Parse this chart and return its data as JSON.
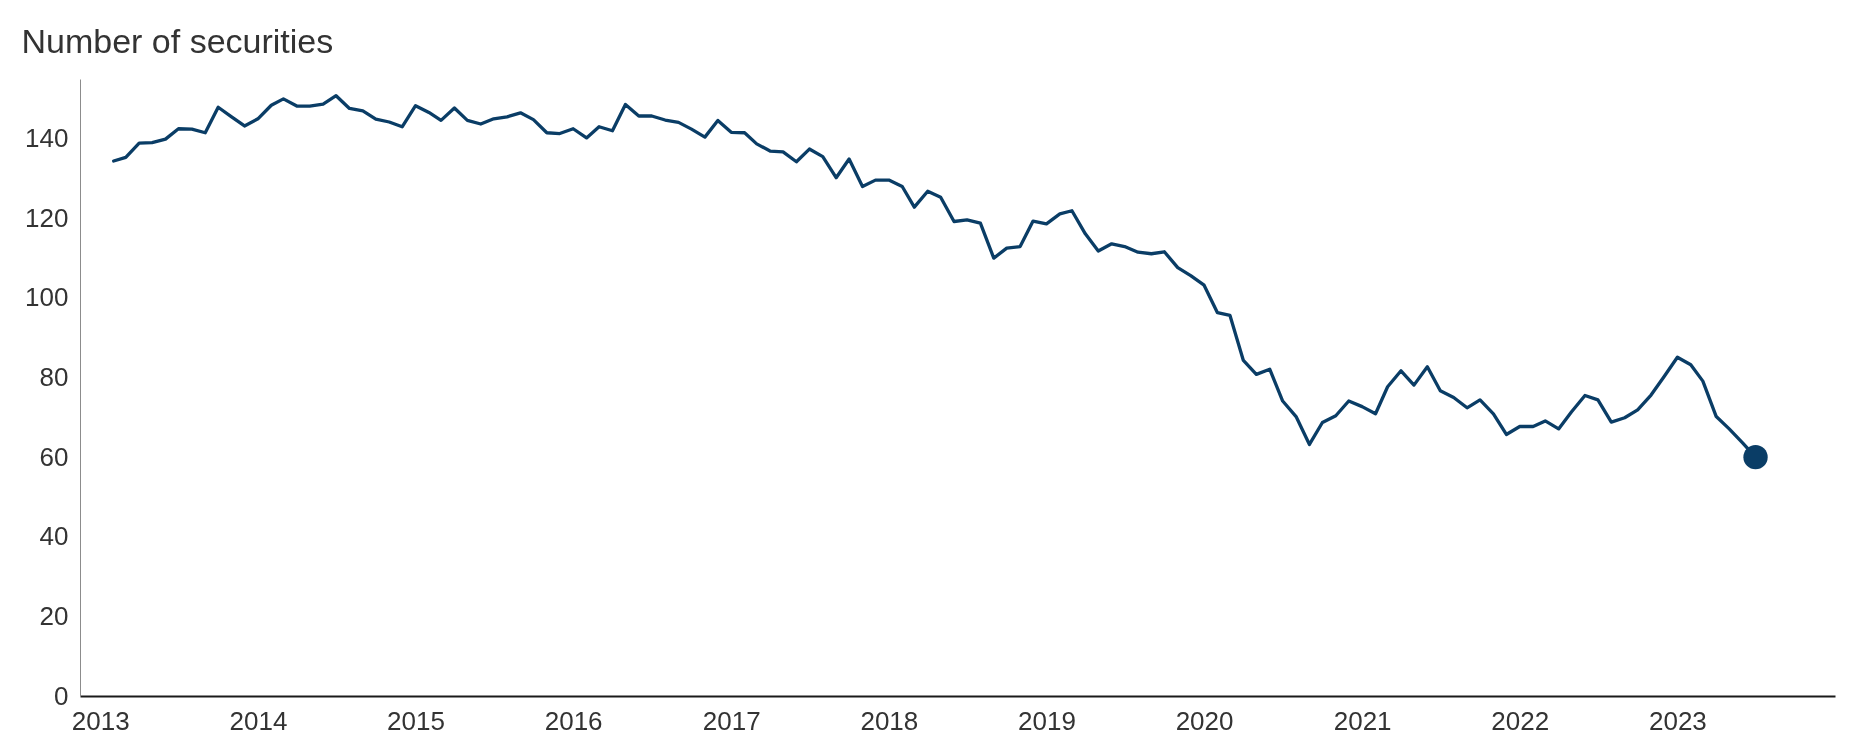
{
  "chart_data": {
    "type": "line",
    "ylabel": "Number of securities",
    "x": [
      "2013-02",
      "2013-03",
      "2013-04",
      "2013-05",
      "2013-06",
      "2013-07",
      "2013-08",
      "2013-09",
      "2013-10",
      "2013-11",
      "2013-12",
      "2014-01",
      "2014-02",
      "2014-03",
      "2014-04",
      "2014-05",
      "2014-06",
      "2014-07",
      "2014-08",
      "2014-09",
      "2014-10",
      "2014-11",
      "2014-12",
      "2015-01",
      "2015-02",
      "2015-03",
      "2015-04",
      "2015-05",
      "2015-06",
      "2015-07",
      "2015-08",
      "2015-09",
      "2015-10",
      "2015-11",
      "2015-12",
      "2016-01",
      "2016-02",
      "2016-03",
      "2016-04",
      "2016-05",
      "2016-06",
      "2016-07",
      "2016-08",
      "2016-09",
      "2016-10",
      "2016-11",
      "2016-12",
      "2017-01",
      "2017-02",
      "2017-03",
      "2017-04",
      "2017-05",
      "2017-06",
      "2017-07",
      "2017-08",
      "2017-09",
      "2017-10",
      "2017-11",
      "2017-12",
      "2018-01",
      "2018-02",
      "2018-03",
      "2018-04",
      "2018-05",
      "2018-06",
      "2018-07",
      "2018-08",
      "2018-09",
      "2018-10",
      "2018-11",
      "2018-12",
      "2019-01",
      "2019-02",
      "2019-03",
      "2019-04",
      "2019-05",
      "2019-06",
      "2019-07",
      "2019-08",
      "2019-09",
      "2019-10",
      "2019-11",
      "2019-12",
      "2020-01",
      "2020-02",
      "2020-03",
      "2020-04",
      "2020-05",
      "2020-06",
      "2020-07",
      "2020-08",
      "2020-09",
      "2020-10",
      "2020-11",
      "2020-12",
      "2021-01",
      "2021-02",
      "2021-03",
      "2021-04",
      "2021-05",
      "2021-06",
      "2021-07",
      "2021-08",
      "2021-09",
      "2021-10",
      "2021-11",
      "2021-12",
      "2022-01",
      "2022-02",
      "2022-03",
      "2022-04",
      "2022-05",
      "2022-06",
      "2022-07",
      "2022-08",
      "2022-09",
      "2022-10",
      "2022-11",
      "2022-12",
      "2023-01",
      "2023-02",
      "2023-03",
      "2023-04",
      "2023-05",
      "2023-06",
      "2023-07"
    ],
    "series": [
      {
        "color": "#0a3d66",
        "values": [
          134.4,
          135.3,
          138.9,
          139.0,
          139.9,
          142.5,
          142.4,
          141.5,
          147.9,
          145.5,
          143.2,
          145.0,
          148.4,
          150.0,
          148.2,
          148.2,
          148.7,
          150.8,
          147.6,
          147.0,
          144.9,
          144.2,
          143.0,
          148.3,
          146.6,
          144.6,
          147.7,
          144.6,
          143.7,
          145.0,
          145.5,
          146.5,
          144.8,
          141.5,
          141.3,
          142.5,
          140.2,
          143.0,
          142.0,
          148.6,
          145.7,
          145.7,
          144.7,
          144.1,
          142.4,
          140.4,
          144.6,
          141.6,
          141.5,
          138.7,
          136.9,
          136.7,
          134.2,
          137.4,
          135.5,
          130.2,
          134.9,
          128.0,
          129.6,
          129.6,
          128.0,
          122.8,
          126.8,
          125.3,
          119.2,
          119.6,
          118.8,
          110.0,
          112.5,
          112.9,
          119.3,
          118.6,
          121.1,
          121.9,
          116.1,
          111.8,
          113.6,
          112.9,
          111.5,
          111.1,
          111.6,
          107.6,
          105.6,
          103.2,
          96.3,
          95.6,
          84.3,
          80.8,
          82.1,
          74.1,
          70.2,
          63.2,
          68.7,
          70.4,
          74.1,
          72.7,
          70.9,
          77.7,
          81.7,
          78.1,
          82.7,
          76.7,
          75.0,
          72.4,
          74.4,
          70.9,
          65.7,
          67.7,
          67.7,
          69.1,
          67.1,
          71.4,
          75.5,
          74.4,
          68.8,
          69.9,
          71.9,
          75.6,
          80.2,
          85.1,
          83.2,
          79.1,
          70.2,
          67.1,
          63.6,
          60.0
        ]
      },
      {
        "type": "scatter",
        "x": [
          "2023-07"
        ],
        "values": [
          60.0
        ],
        "color": "#0a3d66",
        "marker": "circle"
      }
    ],
    "xlim": [
      "2012-11-15",
      "2024-01-01"
    ],
    "xticks": [
      "2013",
      "2014",
      "2015",
      "2016",
      "2017",
      "2018",
      "2019",
      "2020",
      "2021",
      "2022",
      "2023"
    ],
    "ylim": [
      0,
      155
    ],
    "yticks": [
      0,
      20,
      40,
      60,
      80,
      100,
      120,
      140
    ]
  }
}
